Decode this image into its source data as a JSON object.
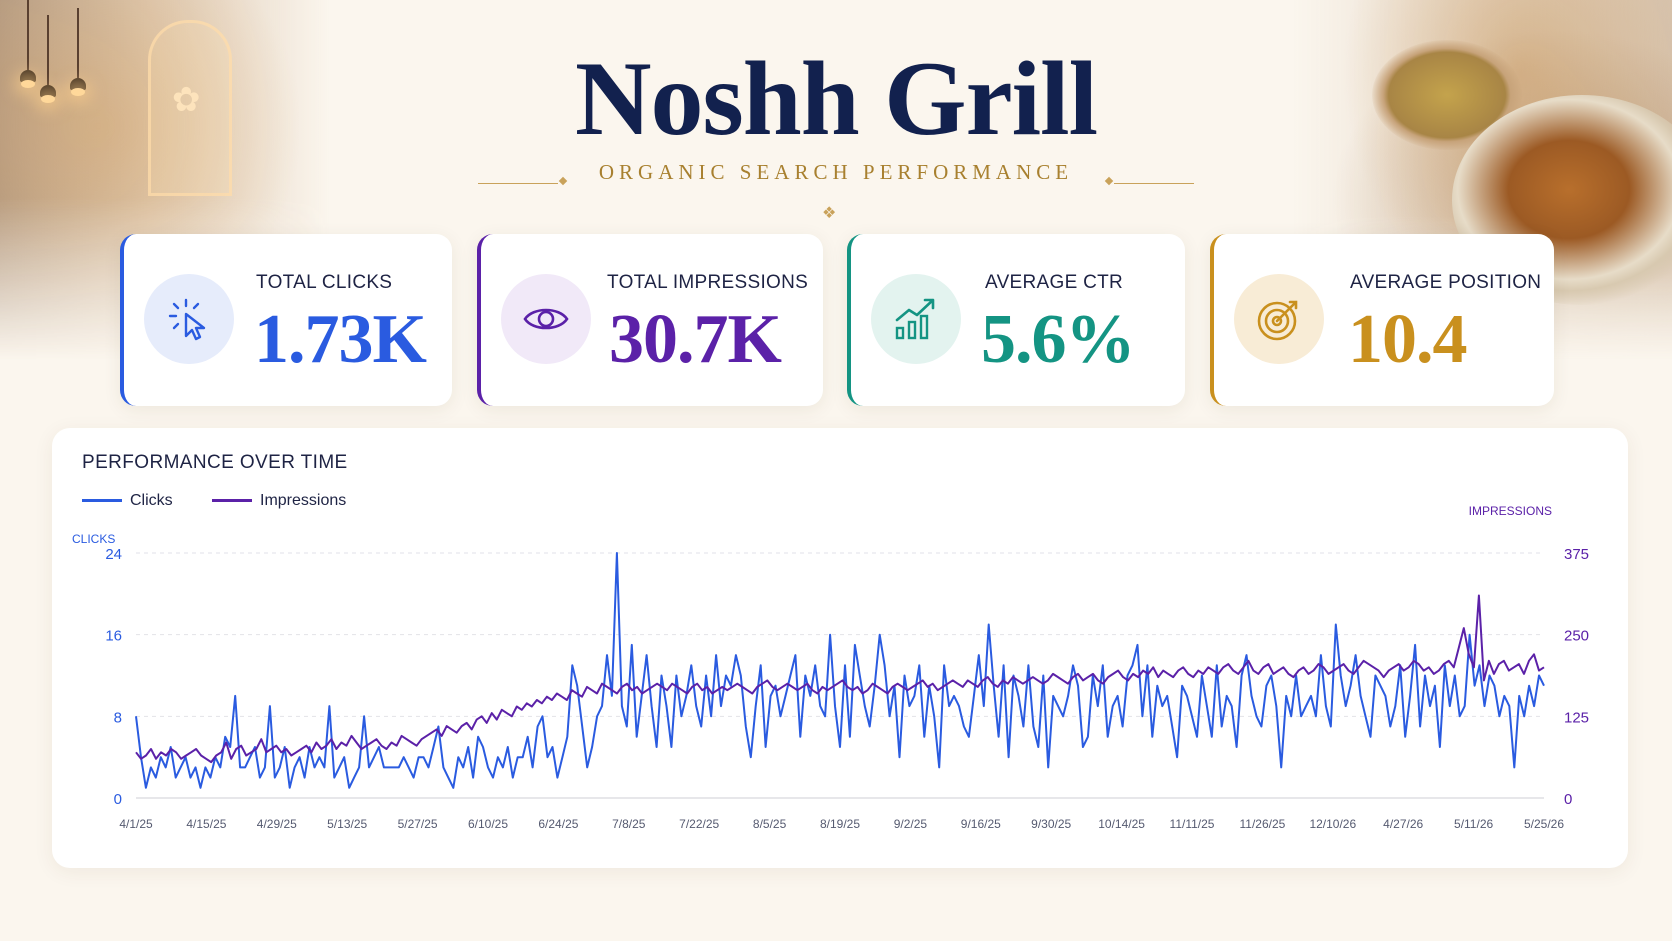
{
  "header": {
    "title": "Noshh Grill",
    "subtitle": "ORGANIC SEARCH PERFORMANCE"
  },
  "kpis": [
    {
      "label": "TOTAL CLICKS",
      "value": "1.73K",
      "icon": "cursor-click-icon",
      "color": "#2a5be0",
      "tint": "#e6ecfb"
    },
    {
      "label": "TOTAL IMPRESSIONS",
      "value": "30.7K",
      "icon": "eye-icon",
      "color": "#5b21a8",
      "tint": "#f1e9f8"
    },
    {
      "label": "AVERAGE CTR",
      "value": "5.6%",
      "icon": "bar-chart-trend-icon",
      "color": "#149483",
      "tint": "#e3f3ef"
    },
    {
      "label": "AVERAGE POSITION",
      "value": "10.4",
      "icon": "target-icon",
      "color": "#c9901e",
      "tint": "#f8ecd6"
    }
  ],
  "chart": {
    "title": "PERFORMANCE OVER TIME",
    "legend": {
      "clicks": "Clicks",
      "impressions": "Impressions"
    },
    "left_axis_label": "CLICKS",
    "right_axis_label": "IMPRESSIONS"
  },
  "chart_data": {
    "type": "line",
    "title": "PERFORMANCE OVER TIME",
    "xlabel": "",
    "ylabel": "CLICKS",
    "y2label": "IMPRESSIONS",
    "ylim": [
      0,
      24
    ],
    "y2lim": [
      0,
      375
    ],
    "yticks": [
      "0",
      "8",
      "16",
      "24"
    ],
    "y2ticks": [
      "0",
      "125",
      "250",
      "375"
    ],
    "x_tick_labels": [
      "4/1/25",
      "4/15/25",
      "4/29/25",
      "5/13/25",
      "5/27/25",
      "6/10/25",
      "6/24/25",
      "7/8/25",
      "7/22/25",
      "8/5/25",
      "8/19/25",
      "9/2/25",
      "9/16/25",
      "9/30/25",
      "10/14/25",
      "11/11/25",
      "11/26/25",
      "12/10/26",
      "4/27/26",
      "5/11/26",
      "5/25/26"
    ],
    "legend_position": "top-left",
    "grid": "horizontal-dashed",
    "series": [
      {
        "name": "Clicks",
        "axis": "left",
        "color": "#2a5be0",
        "values": [
          8,
          4,
          1,
          3,
          2,
          4,
          3,
          5,
          2,
          3,
          4,
          2,
          3,
          1,
          3,
          2,
          4,
          3,
          6,
          5,
          10,
          3,
          3,
          4,
          5,
          2,
          3,
          9,
          2,
          3,
          5,
          1,
          3,
          4,
          2,
          5,
          3,
          4,
          3,
          9,
          2,
          3,
          4,
          1,
          2,
          3,
          8,
          3,
          4,
          5,
          3,
          3,
          3,
          3,
          4,
          3,
          2,
          4,
          4,
          3,
          5,
          7,
          3,
          2,
          1,
          4,
          3,
          5,
          2,
          6,
          5,
          3,
          2,
          4,
          3,
          5,
          2,
          4,
          4,
          6,
          3,
          7,
          8,
          4,
          5,
          2,
          4,
          6,
          13,
          11,
          7,
          3,
          5,
          8,
          9,
          14,
          10,
          24,
          9,
          7,
          15,
          6,
          10,
          14,
          9,
          5,
          12,
          9,
          5,
          12,
          8,
          10,
          13,
          9,
          7,
          12,
          8,
          14,
          9,
          12,
          11,
          14,
          12,
          7,
          4,
          9,
          13,
          5,
          10,
          11,
          8,
          10,
          12,
          14,
          6,
          12,
          10,
          13,
          9,
          8,
          16,
          9,
          5,
          13,
          6,
          15,
          12,
          9,
          7,
          11,
          16,
          13,
          8,
          11,
          4,
          12,
          9,
          10,
          13,
          6,
          11,
          8,
          3,
          13,
          9,
          10,
          9,
          7,
          6,
          10,
          14,
          9,
          17,
          11,
          6,
          13,
          4,
          12,
          10,
          7,
          13,
          7,
          5,
          12,
          3,
          10,
          9,
          8,
          10,
          13,
          11,
          5,
          6,
          12,
          9,
          13,
          6,
          9,
          10,
          7,
          12,
          13,
          15,
          8,
          13,
          6,
          11,
          9,
          10,
          7,
          4,
          11,
          10,
          8,
          6,
          12,
          9,
          6,
          13,
          7,
          10,
          9,
          5,
          12,
          14,
          10,
          8,
          7,
          11,
          12,
          9,
          3,
          10,
          8,
          12,
          8,
          9,
          10,
          8,
          14,
          9,
          7,
          17,
          12,
          9,
          11,
          14,
          10,
          8,
          6,
          12,
          11,
          10,
          7,
          9,
          13,
          6,
          10,
          15,
          7,
          12,
          9,
          11,
          5,
          13,
          9,
          12,
          8,
          9,
          16,
          11,
          13,
          9,
          12,
          11,
          8,
          10,
          9,
          3,
          10,
          8,
          11,
          9,
          12,
          11
        ]
      },
      {
        "name": "Impressions",
        "axis": "right",
        "color": "#5b21a8",
        "values": [
          70,
          60,
          65,
          75,
          60,
          70,
          65,
          75,
          70,
          60,
          65,
          70,
          75,
          65,
          60,
          55,
          65,
          70,
          85,
          60,
          75,
          80,
          65,
          70,
          75,
          90,
          70,
          75,
          80,
          70,
          75,
          65,
          70,
          75,
          80,
          70,
          85,
          75,
          80,
          90,
          75,
          85,
          80,
          95,
          85,
          75,
          80,
          85,
          90,
          80,
          75,
          85,
          80,
          95,
          90,
          85,
          80,
          90,
          95,
          100,
          105,
          95,
          110,
          105,
          100,
          110,
          115,
          105,
          120,
          125,
          115,
          130,
          120,
          135,
          130,
          125,
          140,
          135,
          145,
          140,
          150,
          145,
          155,
          150,
          160,
          155,
          150,
          165,
          160,
          155,
          170,
          165,
          160,
          175,
          170,
          165,
          160,
          170,
          175,
          165,
          170,
          160,
          165,
          170,
          175,
          170,
          165,
          175,
          170,
          165,
          160,
          170,
          175,
          165,
          170,
          160,
          165,
          170,
          165,
          170,
          175,
          170,
          165,
          160,
          170,
          175,
          180,
          170,
          165,
          170,
          175,
          170,
          165,
          170,
          175,
          165,
          160,
          170,
          165,
          170,
          175,
          180,
          170,
          165,
          170,
          160,
          165,
          175,
          170,
          165,
          160,
          170,
          175,
          170,
          165,
          170,
          175,
          180,
          170,
          175,
          165,
          170,
          175,
          180,
          175,
          170,
          180,
          175,
          170,
          180,
          185,
          175,
          170,
          180,
          175,
          185,
          180,
          175,
          180,
          185,
          180,
          175,
          180,
          190,
          185,
          180,
          175,
          185,
          190,
          180,
          185,
          190,
          180,
          175,
          185,
          190,
          195,
          185,
          180,
          190,
          185,
          195,
          190,
          200,
          185,
          195,
          190,
          185,
          195,
          200,
          190,
          185,
          195,
          190,
          200,
          195,
          190,
          200,
          205,
          195,
          190,
          200,
          210,
          195,
          190,
          200,
          205,
          190,
          195,
          200,
          190,
          185,
          195,
          200,
          190,
          195,
          205,
          200,
          190,
          195,
          200,
          205,
          195,
          190,
          200,
          210,
          205,
          200,
          195,
          185,
          195,
          200,
          205,
          195,
          200,
          210,
          205,
          195,
          200,
          190,
          195,
          205,
          210,
          200,
          230,
          260,
          220,
          200,
          310,
          180,
          210,
          190,
          205,
          210,
          195,
          200,
          205,
          190,
          210,
          220,
          195,
          200
        ]
      }
    ]
  }
}
